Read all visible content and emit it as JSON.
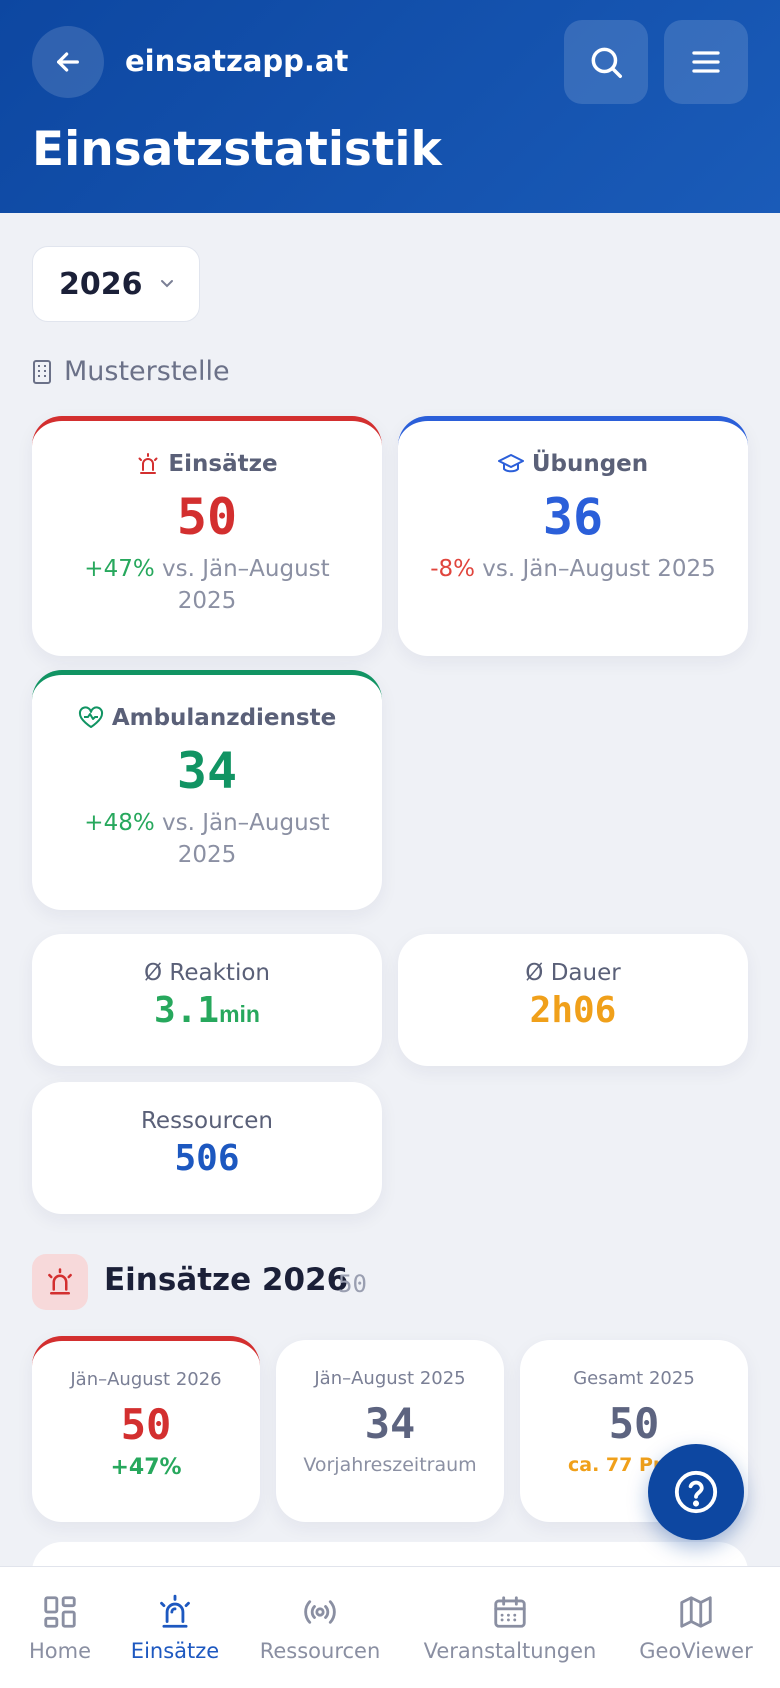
{
  "header": {
    "app_name": "einsatzapp.at",
    "title": "Einsatzstatistik"
  },
  "year_select": {
    "value": "2026"
  },
  "station": {
    "name": "Musterstelle"
  },
  "stats": [
    {
      "label": "Einsätze",
      "value": "50",
      "change": "+47%",
      "compare": "vs. Jän–August 2025"
    },
    {
      "label": "Übungen",
      "value": "36",
      "change": "-8%",
      "compare": "vs. Jän–August 2025"
    },
    {
      "label": "Ambulanzdienste",
      "value": "34",
      "change": "+48%",
      "compare": "vs. Jän–August 2025"
    }
  ],
  "kpis": {
    "reaction": {
      "label": "Ø Reaktion",
      "value": "3.1",
      "unit": "min"
    },
    "duration": {
      "label": "Ø Dauer",
      "value": "2h06"
    },
    "resources": {
      "label": "Ressourcen",
      "value": "506"
    }
  },
  "section": {
    "title": "Einsätze 2026",
    "count": "50"
  },
  "mini_cards": [
    {
      "label": "Jän–August 2026",
      "value": "50",
      "sub": "+47%"
    },
    {
      "label": "Jän–August 2025",
      "value": "34",
      "sub": "Vorjahreszeitraum"
    },
    {
      "label": "Gesamt 2025",
      "value": "50",
      "sub": "ca. 77 Pro"
    }
  ],
  "nav": {
    "items": [
      {
        "label": "Home",
        "icon": "grid-icon"
      },
      {
        "label": "Einsätze",
        "icon": "siren-icon",
        "active": true
      },
      {
        "label": "Ressourcen",
        "icon": "broadcast-icon"
      },
      {
        "label": "Veranstaltungen",
        "icon": "calendar-icon"
      },
      {
        "label": "GeoViewer",
        "icon": "map-icon"
      }
    ]
  },
  "colors": {
    "primary": "#0d47a1",
    "einsaetze": "#d32f2f",
    "uebungen": "#2b5fd9",
    "ambulanz": "#119463",
    "duration": "#f0a01a"
  }
}
